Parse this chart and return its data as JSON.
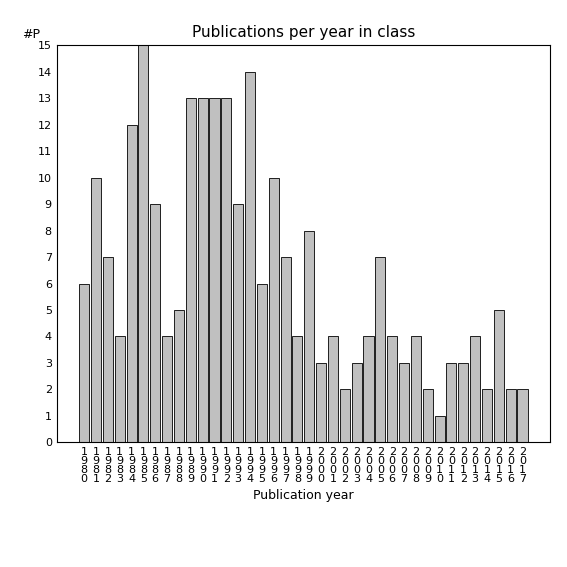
{
  "title": "Publications per year in class",
  "xlabel": "Publication year",
  "ylabel": "#P",
  "years": [
    "1980",
    "1981",
    "1982",
    "1983",
    "1984",
    "1985",
    "1986",
    "1987",
    "1988",
    "1989",
    "1990",
    "1991",
    "1992",
    "1993",
    "1994",
    "1995",
    "1996",
    "1997",
    "1998",
    "1999",
    "2000",
    "2001",
    "2002",
    "2003",
    "2004",
    "2005",
    "2006",
    "2007",
    "2008",
    "2009",
    "2010",
    "2011",
    "2012",
    "2013",
    "2014",
    "2015",
    "2016",
    "2017"
  ],
  "values": [
    6,
    10,
    7,
    4,
    12,
    15,
    9,
    4,
    5,
    13,
    13,
    13,
    13,
    9,
    14,
    6,
    10,
    7,
    4,
    8,
    3,
    4,
    2,
    3,
    4,
    7,
    4,
    3,
    4,
    2,
    1,
    3,
    3,
    4,
    2,
    5,
    2,
    2
  ],
  "bar_color": "#c0c0c0",
  "bar_edge_color": "#000000",
  "ylim": [
    0,
    15
  ],
  "yticks": [
    0,
    1,
    2,
    3,
    4,
    5,
    6,
    7,
    8,
    9,
    10,
    11,
    12,
    13,
    14,
    15
  ],
  "bg_color": "#ffffff",
  "title_fontsize": 11,
  "label_fontsize": 9,
  "tick_fontsize": 8
}
